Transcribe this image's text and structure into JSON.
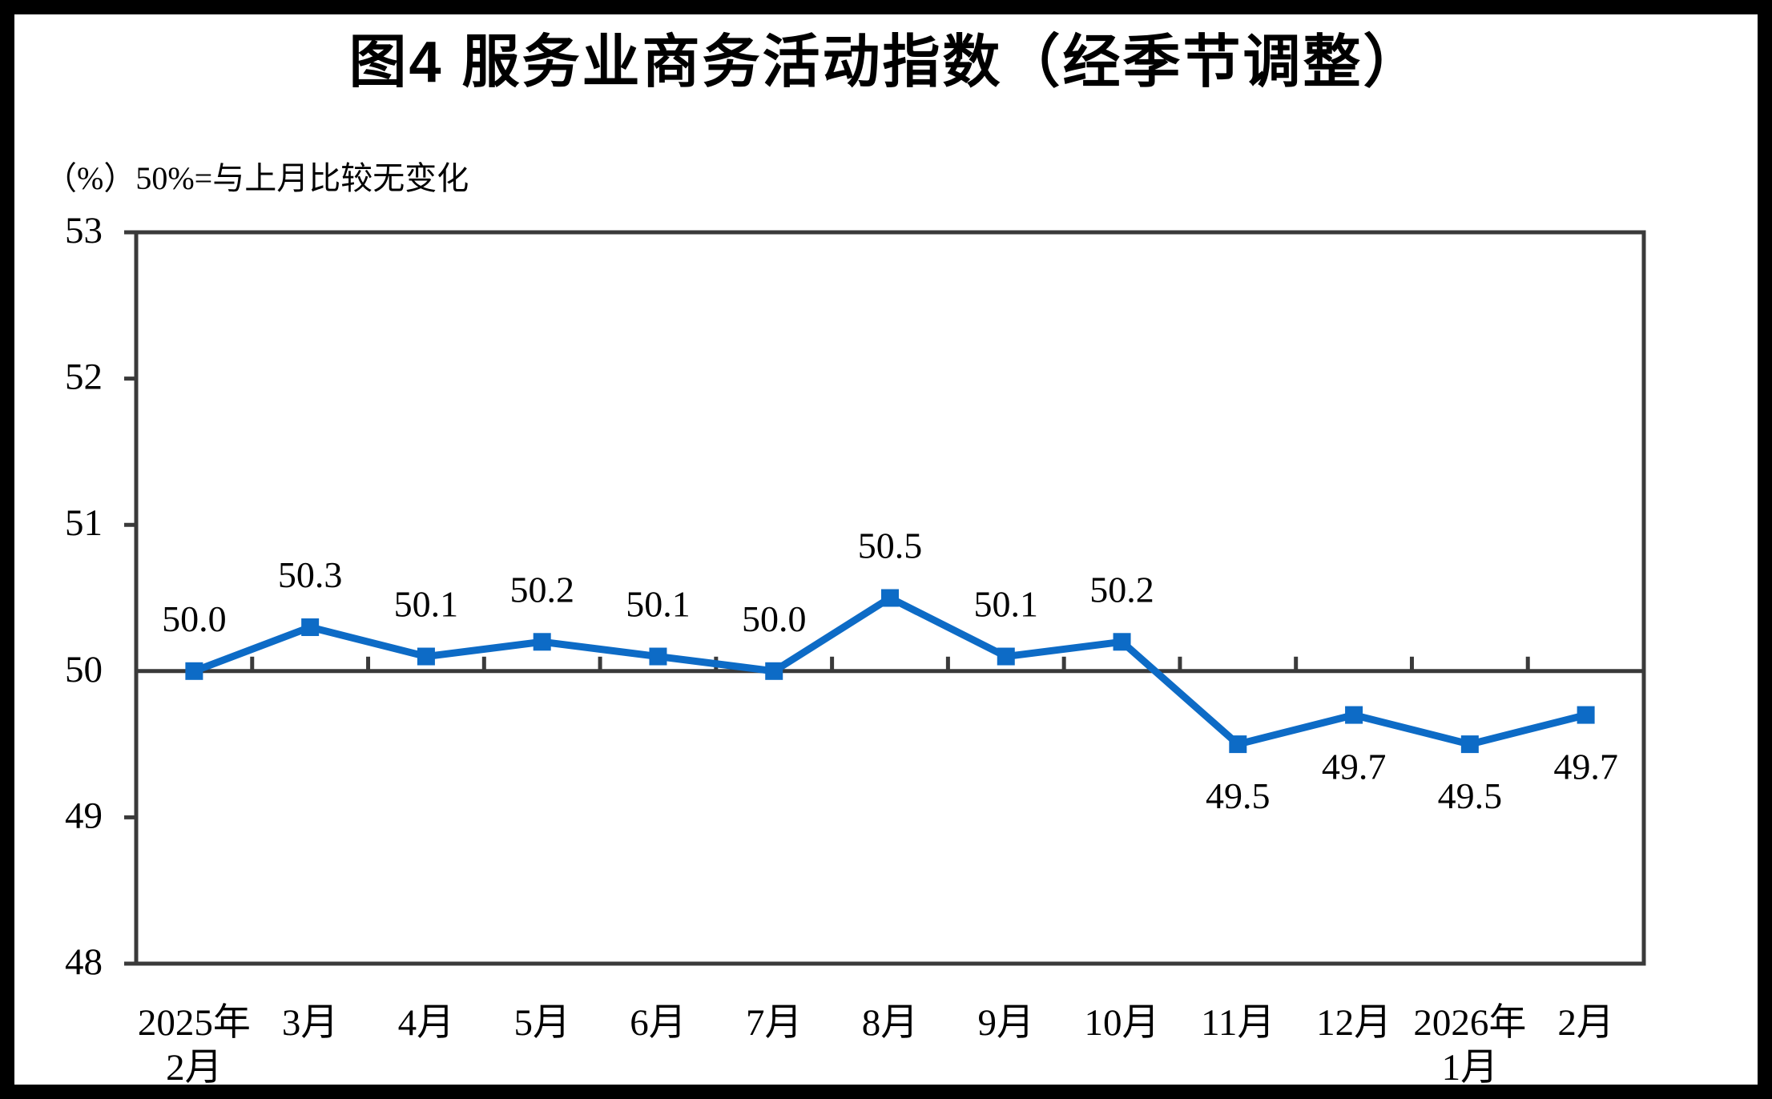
{
  "page": {
    "title": "图4  服务业商务活动指数（经季节调整）",
    "unit_note": "（%）50%=与上月比较无变化"
  },
  "chart_data": {
    "type": "line",
    "title": "图4  服务业商务活动指数（经季节调整）",
    "subtitle": "（%）50%=与上月比较无变化",
    "unit": "%",
    "categories": [
      "2025年\n2月",
      "3月",
      "4月",
      "5月",
      "6月",
      "7月",
      "8月",
      "9月",
      "10月",
      "11月",
      "12月",
      "2026年\n1月",
      "2月"
    ],
    "series": [
      {
        "name": "服务业商务活动指数（经季节调整）",
        "values": [
          50.0,
          50.3,
          50.1,
          50.2,
          50.1,
          50.0,
          50.5,
          50.1,
          50.2,
          49.5,
          49.7,
          49.5,
          49.7
        ]
      }
    ],
    "data_labels": [
      "50.0",
      "50.3",
      "50.1",
      "50.2",
      "50.1",
      "50.0",
      "50.5",
      "50.1",
      "50.2",
      "49.5",
      "49.7",
      "49.5",
      "49.7"
    ],
    "ylim": [
      48,
      53
    ],
    "yticks": [
      48,
      49,
      50,
      51,
      52,
      53
    ],
    "reference_line": 50,
    "grid": false,
    "legend": "none",
    "line_color": "#0D6BC6",
    "marker_color": "#0D6BC6",
    "axis_color": "#3A3A3A",
    "frame_color": "#000000",
    "text_color": "#000000"
  }
}
